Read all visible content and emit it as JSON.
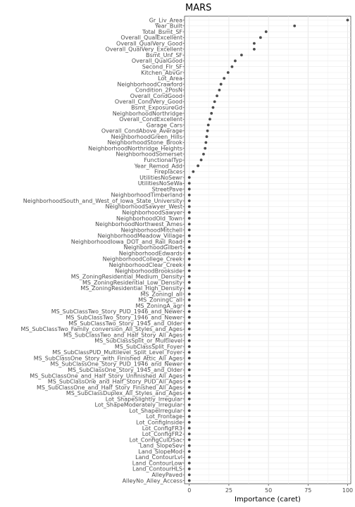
{
  "chart_data": {
    "type": "scatter",
    "title": "MARS",
    "xlabel": "Importance (caret)",
    "ylabel": "",
    "xlim": [
      -3,
      102
    ],
    "x_ticks": [
      0,
      25,
      50,
      75,
      100
    ],
    "grid": true,
    "point_color": "#4d4d4d",
    "categories": [
      "Gr_Liv_Area",
      "Year_Built",
      "Total_Bsmt_SF",
      "Overall_QualExcellent",
      "Overall_QualVery_Good",
      "Overall_QualVery_Excellent",
      "Bsmt_Unf_SF",
      "Overall_QualGood",
      "Second_Flr_SF",
      "Kitchen_AbvGr",
      "Lot_Area",
      "NeighborhoodCrawford",
      "Condition_2PosN",
      "Overall_CondGood",
      "Overall_CondVery_Good",
      "Bsmt_ExposureGd",
      "NeighborhoodNorthridge",
      "Overall_CondExcellent",
      "Garage_Cars",
      "Overall_CondAbove_Average",
      "NeighborhoodGreen_Hills",
      "NeighborhoodStone_Brook",
      "NeighborhoodNorthridge_Heights",
      "NeighborhoodSomerset",
      "FunctionalTyp",
      "Year_Remod_Add",
      "Fireplaces",
      "UtilitiesNoSewr",
      "UtilitiesNoSeWa",
      "StreetPave",
      "NeighborhoodTimberland",
      "NeighborhoodSouth_and_West_of_Iowa_State_University",
      "NeighborhoodSawyer_West",
      "NeighborhoodSawyer",
      "NeighborhoodOld_Town",
      "NeighborhoodNorthwest_Ames",
      "NeighborhoodMitchell",
      "NeighborhoodMeadow_Village",
      "NeighborhoodIowa_DOT_and_Rail_Road",
      "NeighborhoodGilbert",
      "NeighborhoodEdwards",
      "NeighborhoodCollege_Creek",
      "NeighborhoodClear_Creek",
      "NeighborhoodBrookside",
      "MS_ZoningResidential_Medium_Density",
      "MS_ZoningResidential_Low_Density",
      "MS_ZoningResidential_High_Density",
      "MS_ZoningI_all",
      "MS_ZoningC_all",
      "MS_ZoningA_agr",
      "MS_SubClassTwo_Story_PUD_1946_and_Newer",
      "MS_SubClassTwo_Story_1946_and_Newer",
      "MS_SubClassTwo_Story_1945_and_Older",
      "MS_SubClassTwo_Family_conversion_All_Styles_and_Ages",
      "MS_SubClassTwo_and_Half_Story_All_Ages",
      "MS_SubClassSplit_or_Multilevel",
      "MS_SubClassSplit_Foyer",
      "MS_SubClassPUD_Multilevel_Split_Level_Foyer",
      "MS_SubClassOne_Story_with_Finished_Attic_All_Ages",
      "MS_SubClassOne_Story_PUD_1946_and_Newer",
      "MS_SubClassOne_Story_1945_and_Older",
      "MS_SubClassOne_and_Half_Story_Unfinished_All_Ages",
      "MS_SubClassOne_and_Half_Story_PUD_All_Ages",
      "MS_SubClassOne_and_Half_Story_Finished_All_Ages",
      "MS_SubClassDuplex_All_Styles_and_Ages",
      "Lot_ShapeSlightly_Irregular",
      "Lot_ShapeModerately_Irregular",
      "Lot_ShapeIrregular",
      "Lot_Frontage",
      "Lot_ConfigInside",
      "Lot_ConfigFR3",
      "Lot_ConfigFR2",
      "Lot_ConfigCulDSac",
      "Land_SlopeSev",
      "Land_SlopeMod",
      "Land_ContourLvl",
      "Land_ContourLow",
      "Land_ContourHLS",
      "AlleyPaved",
      "AlleyNo_Alley_Access"
    ],
    "values": [
      100,
      66.5,
      48.5,
      45,
      41,
      41,
      33,
      29,
      27,
      24.5,
      22,
      20,
      19,
      17.5,
      16,
      15,
      14,
      13,
      12,
      11.5,
      11,
      10.5,
      10,
      9,
      7.5,
      5.5,
      2.5,
      0,
      0,
      0,
      0,
      0,
      0,
      0,
      0,
      0,
      0,
      0,
      0,
      0,
      0,
      0,
      0,
      0,
      0,
      0,
      0,
      0,
      0,
      0,
      0,
      0,
      0,
      0,
      0,
      0,
      0,
      0,
      0,
      0,
      0,
      0,
      0,
      0,
      0,
      0,
      0,
      0,
      0,
      0,
      0,
      0,
      0,
      0,
      0,
      0,
      0,
      0,
      0,
      0
    ]
  }
}
